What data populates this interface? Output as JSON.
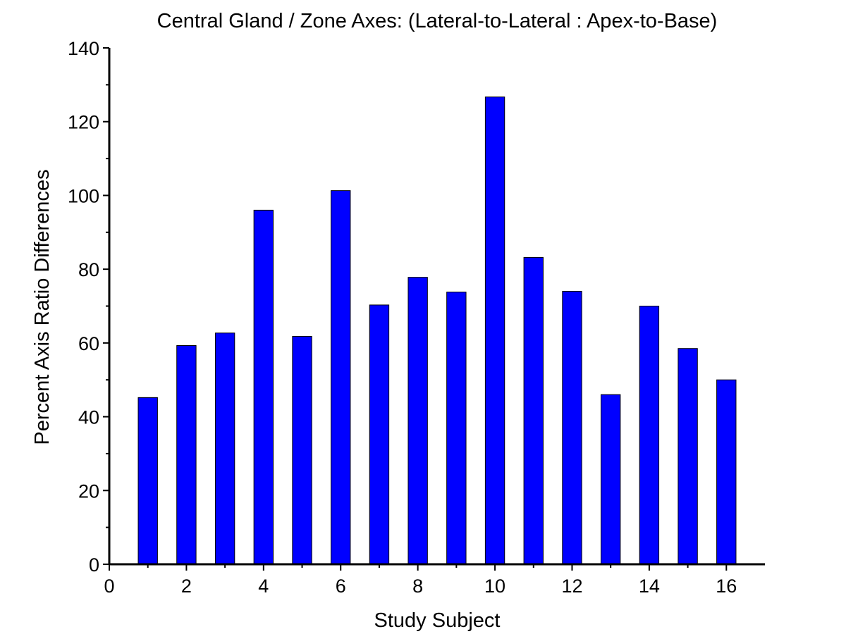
{
  "chart_data": {
    "type": "bar",
    "title": "Central Gland / Zone Axes: (Lateral-to-Lateral : Apex-to-Base)",
    "xlabel": "Study Subject",
    "ylabel": "Percent Axis Ratio Differences",
    "x": [
      1,
      2,
      3,
      4,
      5,
      6,
      7,
      8,
      9,
      10,
      11,
      12,
      13,
      14,
      15,
      16
    ],
    "values": [
      45.2,
      59.3,
      62.7,
      96.0,
      61.8,
      101.3,
      70.3,
      77.8,
      73.8,
      126.7,
      83.2,
      74.0,
      46.0,
      70.0,
      58.5,
      50.0
    ],
    "xlim": [
      0,
      17
    ],
    "ylim": [
      0,
      140
    ],
    "xticks": [
      0,
      2,
      4,
      6,
      8,
      10,
      12,
      14,
      16
    ],
    "yticks": [
      0,
      20,
      40,
      60,
      80,
      100,
      120,
      140
    ],
    "bar_color": "#0000ff",
    "grid": false,
    "legend": "none"
  }
}
